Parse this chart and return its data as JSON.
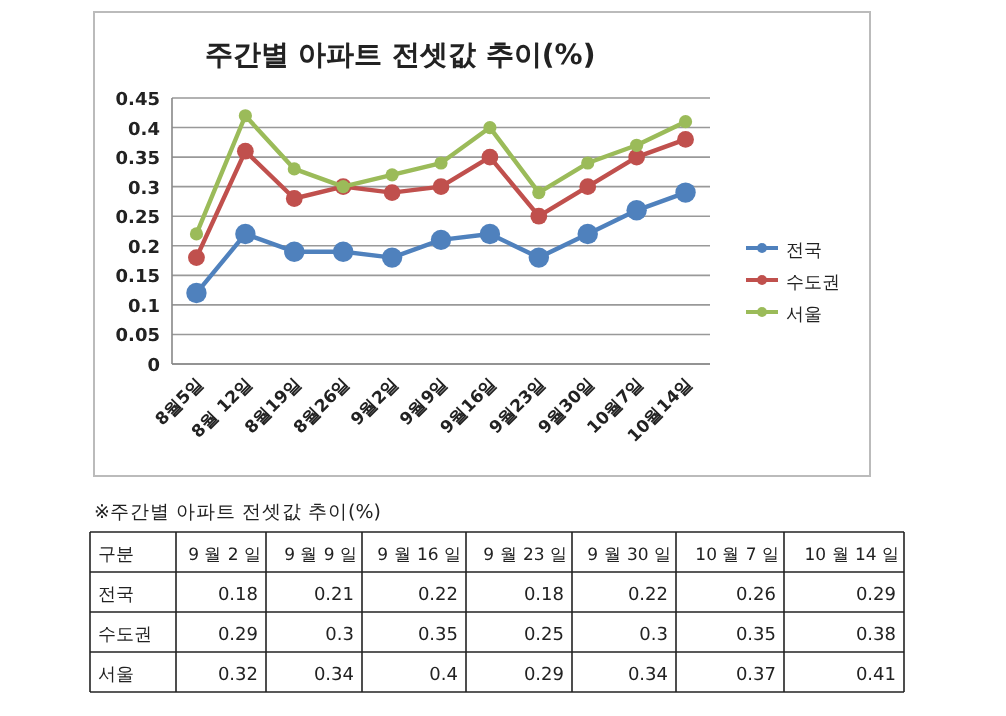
{
  "chart_data": {
    "type": "line",
    "title": "주간별 아파트 전셋값 추이(%)",
    "categories": [
      "8월5일",
      "8월 12일",
      "8월19일",
      "8월26일",
      "9월2일",
      "9월9일",
      "9월16일",
      "9월23일",
      "9월30일",
      "10월7일",
      "10월14일"
    ],
    "series": [
      {
        "name": "전국",
        "color": "#4f81bd",
        "values": [
          0.12,
          0.22,
          0.19,
          0.19,
          0.18,
          0.21,
          0.22,
          0.18,
          0.22,
          0.26,
          0.29
        ]
      },
      {
        "name": "수도권",
        "color": "#c0504d",
        "values": [
          0.18,
          0.36,
          0.28,
          0.3,
          0.29,
          0.3,
          0.35,
          0.25,
          0.3,
          0.35,
          0.38
        ]
      },
      {
        "name": "서울",
        "color": "#9bbb59",
        "values": [
          0.22,
          0.42,
          0.33,
          0.3,
          0.32,
          0.34,
          0.4,
          0.29,
          0.34,
          0.37,
          0.41
        ]
      }
    ],
    "ylim": [
      0,
      0.45
    ],
    "yticks": [
      0,
      0.05,
      0.1,
      0.15,
      0.2,
      0.25,
      0.3,
      0.35,
      0.4,
      0.45
    ],
    "grid": "y",
    "legend": "right",
    "marker": "circle",
    "line_style": "solid",
    "annotations": [
      "※주간별 아파트 전셋값 추이(%)",
      "구분",
      "9 월 2 일",
      "9 월 9 일",
      "9 월 16 일",
      "9 월 23 일",
      "9 월 30 일",
      "10 월 7 일",
      "10 월 14 일",
      "0.18",
      "0.21",
      "0.22",
      "0.18",
      "0.22",
      "0.26",
      "0.29",
      "0.29",
      "0.3",
      "0.35",
      "0.25",
      "0.3",
      "0.35",
      "0.38",
      "0.32",
      "0.34",
      "0.4",
      "0.29",
      "0.34",
      "0.37",
      "0.41"
    ]
  }
}
